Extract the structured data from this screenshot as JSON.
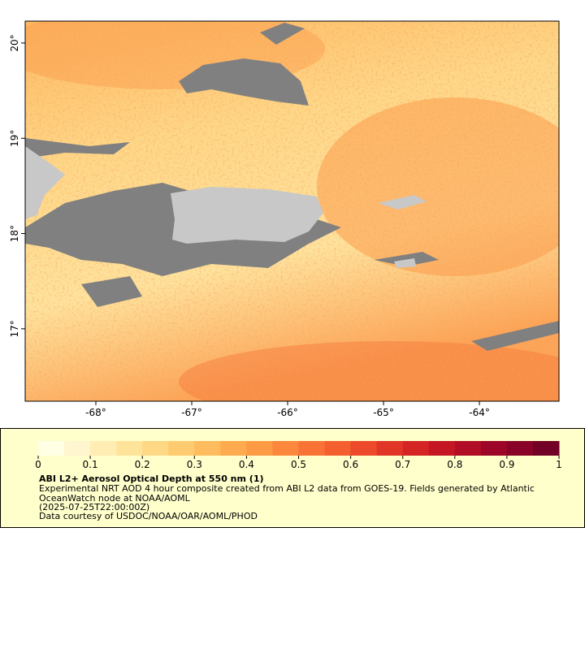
{
  "map": {
    "xlim": [
      -68.737,
      -63.17
    ],
    "ylim": [
      16.24,
      20.23
    ],
    "xticks": [
      {
        "value": -68,
        "label": "-68°"
      },
      {
        "value": -67,
        "label": "-67°"
      },
      {
        "value": -66,
        "label": "-66°"
      },
      {
        "value": -65,
        "label": "-65°"
      },
      {
        "value": -64,
        "label": "-64°"
      }
    ],
    "yticks": [
      {
        "value": 17,
        "label": "17°"
      },
      {
        "value": 18,
        "label": "18°"
      },
      {
        "value": 19,
        "label": "19°"
      },
      {
        "value": 20,
        "label": "20°"
      }
    ]
  },
  "legend": {
    "colorbar": {
      "range": [
        0,
        1
      ],
      "ticks": [
        0,
        0.1,
        0.2,
        0.3,
        0.4,
        0.5,
        0.6,
        0.7,
        0.8,
        0.9,
        1
      ],
      "colors": [
        "#ffffe6",
        "#fff6cf",
        "#ffedb3",
        "#fee49a",
        "#fed885",
        "#fecb70",
        "#febc5e",
        "#fdab4e",
        "#fd9a44",
        "#fc873d",
        "#f97336",
        "#f45f30",
        "#ec4a2b",
        "#e13527",
        "#d42424",
        "#c41723",
        "#b10d26",
        "#9d0628",
        "#880327",
        "#730026"
      ]
    },
    "title": "ABI L2+ Aerosol Optical Depth at 550 nm (1)",
    "lines": [
      "Experimental NRT AOD 4 hour composite created from ABI L2 data from GOES-19. Fields generated by Atlantic",
      "OceanWatch node at NOAA/AOML",
      "(2025-07-25T22:00:00Z)",
      "Data courtesy of USDOC/NOAA/OAR/AOML/PHOD"
    ]
  }
}
